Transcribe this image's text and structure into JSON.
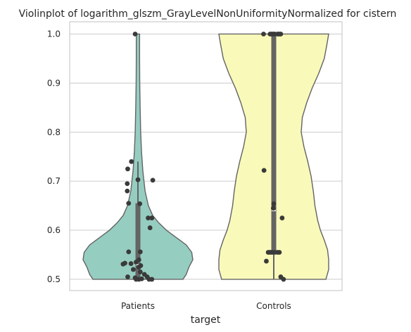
{
  "chart_data": {
    "type": "violin",
    "title": "Violinplot of logarithm_glszm_GrayLevelNonUniformityNormalized for cistern",
    "xlabel": "target",
    "ylabel": "",
    "ylim": [
      0.477,
      1.025
    ],
    "yticks": [
      "0.5",
      "0.6",
      "0.7",
      "0.8",
      "0.9",
      "1.0"
    ],
    "grid": true,
    "categories": [
      "Patients",
      "Controls"
    ],
    "colors": {
      "Patients": "#96cdc1",
      "Controls": "#f9f9ba",
      "outline": "#646464",
      "points": "#3a3a3a",
      "grid": "#cccccc"
    },
    "violins": [
      {
        "name": "Patients",
        "color": "#96cdc1",
        "box": {
          "q1": 0.5,
          "median": 0.53,
          "q3": 0.655,
          "whisker_low": 0.5,
          "whisker_high": 0.74
        },
        "density": [
          [
            0.5,
            0.82
          ],
          [
            0.51,
            0.88
          ],
          [
            0.525,
            0.93
          ],
          [
            0.54,
            1.0
          ],
          [
            0.555,
            0.98
          ],
          [
            0.57,
            0.88
          ],
          [
            0.585,
            0.7
          ],
          [
            0.6,
            0.52
          ],
          [
            0.615,
            0.38
          ],
          [
            0.63,
            0.27
          ],
          [
            0.65,
            0.19
          ],
          [
            0.68,
            0.13
          ],
          [
            0.72,
            0.09
          ],
          [
            0.76,
            0.065
          ],
          [
            0.8,
            0.05
          ],
          [
            0.85,
            0.04
          ],
          [
            0.9,
            0.033
          ],
          [
            0.95,
            0.03
          ],
          [
            1.0,
            0.03
          ]
        ],
        "points": [
          [
            0.74,
            -0.14
          ],
          [
            0.725,
            -0.22
          ],
          [
            0.703,
            0.0
          ],
          [
            0.702,
            0.32
          ],
          [
            0.695,
            -0.23
          ],
          [
            0.68,
            -0.23
          ],
          [
            0.655,
            -0.2
          ],
          [
            0.654,
            0.04
          ],
          [
            0.625,
            0.22
          ],
          [
            0.625,
            0.3
          ],
          [
            0.605,
            0.26
          ],
          [
            0.556,
            -0.2
          ],
          [
            0.556,
            0.05
          ],
          [
            0.54,
            0.02
          ],
          [
            0.535,
            -0.04
          ],
          [
            0.533,
            -0.28
          ],
          [
            0.532,
            -0.15
          ],
          [
            0.531,
            -0.32
          ],
          [
            0.528,
            0.06
          ],
          [
            0.525,
            0.02
          ],
          [
            0.52,
            -0.1
          ],
          [
            0.515,
            0.05
          ],
          [
            0.51,
            0.14
          ],
          [
            0.505,
            -0.22
          ],
          [
            0.505,
            0.2
          ],
          [
            0.503,
            -0.06
          ],
          [
            0.501,
            0.08
          ],
          [
            0.5,
            0.02
          ],
          [
            0.5,
            0.24
          ],
          [
            0.5,
            0.3
          ],
          [
            0.5,
            -0.04
          ],
          [
            1.0,
            -0.06
          ]
        ]
      },
      {
        "name": "Controls",
        "color": "#f9f9ba",
        "box": {
          "q1": 0.555,
          "median": 0.64,
          "q3": 1.0,
          "whisker_low": 0.5,
          "whisker_high": 1.0
        },
        "density": [
          [
            0.5,
            0.95
          ],
          [
            0.52,
            1.0
          ],
          [
            0.54,
            1.0
          ],
          [
            0.56,
            0.98
          ],
          [
            0.58,
            0.92
          ],
          [
            0.6,
            0.85
          ],
          [
            0.62,
            0.8
          ],
          [
            0.65,
            0.75
          ],
          [
            0.68,
            0.72
          ],
          [
            0.71,
            0.68
          ],
          [
            0.74,
            0.62
          ],
          [
            0.77,
            0.55
          ],
          [
            0.8,
            0.5
          ],
          [
            0.83,
            0.52
          ],
          [
            0.86,
            0.6
          ],
          [
            0.89,
            0.7
          ],
          [
            0.92,
            0.82
          ],
          [
            0.95,
            0.92
          ],
          [
            0.98,
            0.97
          ],
          [
            1.0,
            1.0
          ]
        ],
        "points": [
          [
            1.0,
            -0.22
          ],
          [
            1.0,
            -0.08
          ],
          [
            1.0,
            -0.05
          ],
          [
            1.0,
            -0.03
          ],
          [
            1.0,
            0.0
          ],
          [
            1.0,
            0.02
          ],
          [
            1.0,
            0.08
          ],
          [
            1.0,
            0.1
          ],
          [
            1.0,
            0.13
          ],
          [
            1.0,
            0.15
          ],
          [
            0.722,
            -0.21
          ],
          [
            0.654,
            0.0
          ],
          [
            0.645,
            -0.01
          ],
          [
            0.625,
            0.18
          ],
          [
            0.555,
            -0.12
          ],
          [
            0.555,
            -0.09
          ],
          [
            0.555,
            -0.06
          ],
          [
            0.555,
            -0.03
          ],
          [
            0.555,
            0.02
          ],
          [
            0.555,
            0.08
          ],
          [
            0.555,
            0.12
          ],
          [
            0.537,
            -0.16
          ],
          [
            0.505,
            0.15
          ],
          [
            0.5,
            0.21
          ]
        ]
      }
    ]
  }
}
